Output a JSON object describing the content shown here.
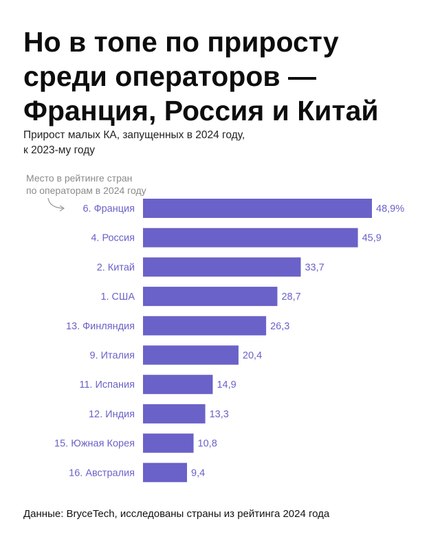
{
  "header": {
    "title": "Но в топе по приросту\nсреди операторов —\nФранция, Россия и Китай",
    "subtitle": "Прирост малых КА, запущенных в 2024 году,\nк 2023-му году"
  },
  "annotation": "Место в рейтинге стран\nпо операторам в 2024 году",
  "footer": {
    "source": "Данные: BryceTech, исследованы страны из рейтинга 2024 года"
  },
  "colors": {
    "bar": "#6a62c8",
    "label": "#6a62c8",
    "title": "#0d0d0d"
  },
  "chart_data": {
    "type": "bar",
    "orientation": "horizontal",
    "categories": [
      "6. Франция",
      "4. Россия",
      "2. Китай",
      "1. США",
      "13. Финляндия",
      "9. Италия",
      "11. Испания",
      "12. Индия",
      "15. Южная Корея",
      "16. Австралия"
    ],
    "values": [
      48.9,
      45.9,
      33.7,
      28.7,
      26.3,
      20.4,
      14.9,
      13.3,
      10.8,
      9.4
    ],
    "value_labels": [
      "48,9%",
      "45,9",
      "33,7",
      "28,7",
      "26,3",
      "20,4",
      "14,9",
      "13,3",
      "10,8",
      "9,4"
    ],
    "xlim": [
      0,
      48.9
    ],
    "grid": false,
    "legend": "none"
  }
}
